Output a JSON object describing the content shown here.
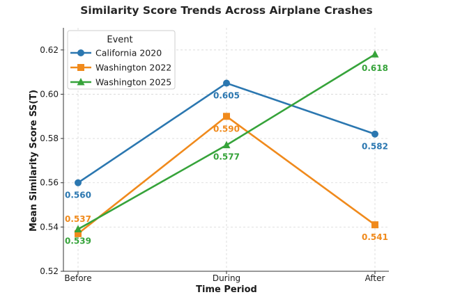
{
  "chart_data": {
    "type": "line",
    "title": "Similarity Score Trends Across Airplane Crashes",
    "xlabel": "Time Period",
    "ylabel": "Mean Similarity Score SS(T)",
    "categories": [
      "Before",
      "During",
      "After"
    ],
    "ylim": [
      0.52,
      0.63
    ],
    "yticks": [
      "0.52",
      "0.54",
      "0.56",
      "0.58",
      "0.60",
      "0.62"
    ],
    "grid": true,
    "legend": {
      "title": "Event",
      "placement": "top-left"
    },
    "series": [
      {
        "name": "California 2020",
        "values": [
          0.56,
          0.605,
          0.582
        ],
        "labels": [
          "0.560",
          "0.605",
          "0.582"
        ],
        "color": "#2b77b0",
        "marker": "circle"
      },
      {
        "name": "Washington 2022",
        "values": [
          0.537,
          0.59,
          0.541
        ],
        "labels": [
          "0.537",
          "0.590",
          "0.541"
        ],
        "color": "#f08a1c",
        "marker": "square"
      },
      {
        "name": "Washington 2025",
        "values": [
          0.539,
          0.577,
          0.618
        ],
        "labels": [
          "0.539",
          "0.577",
          "0.618"
        ],
        "color": "#36a33a",
        "marker": "triangle"
      }
    ]
  }
}
